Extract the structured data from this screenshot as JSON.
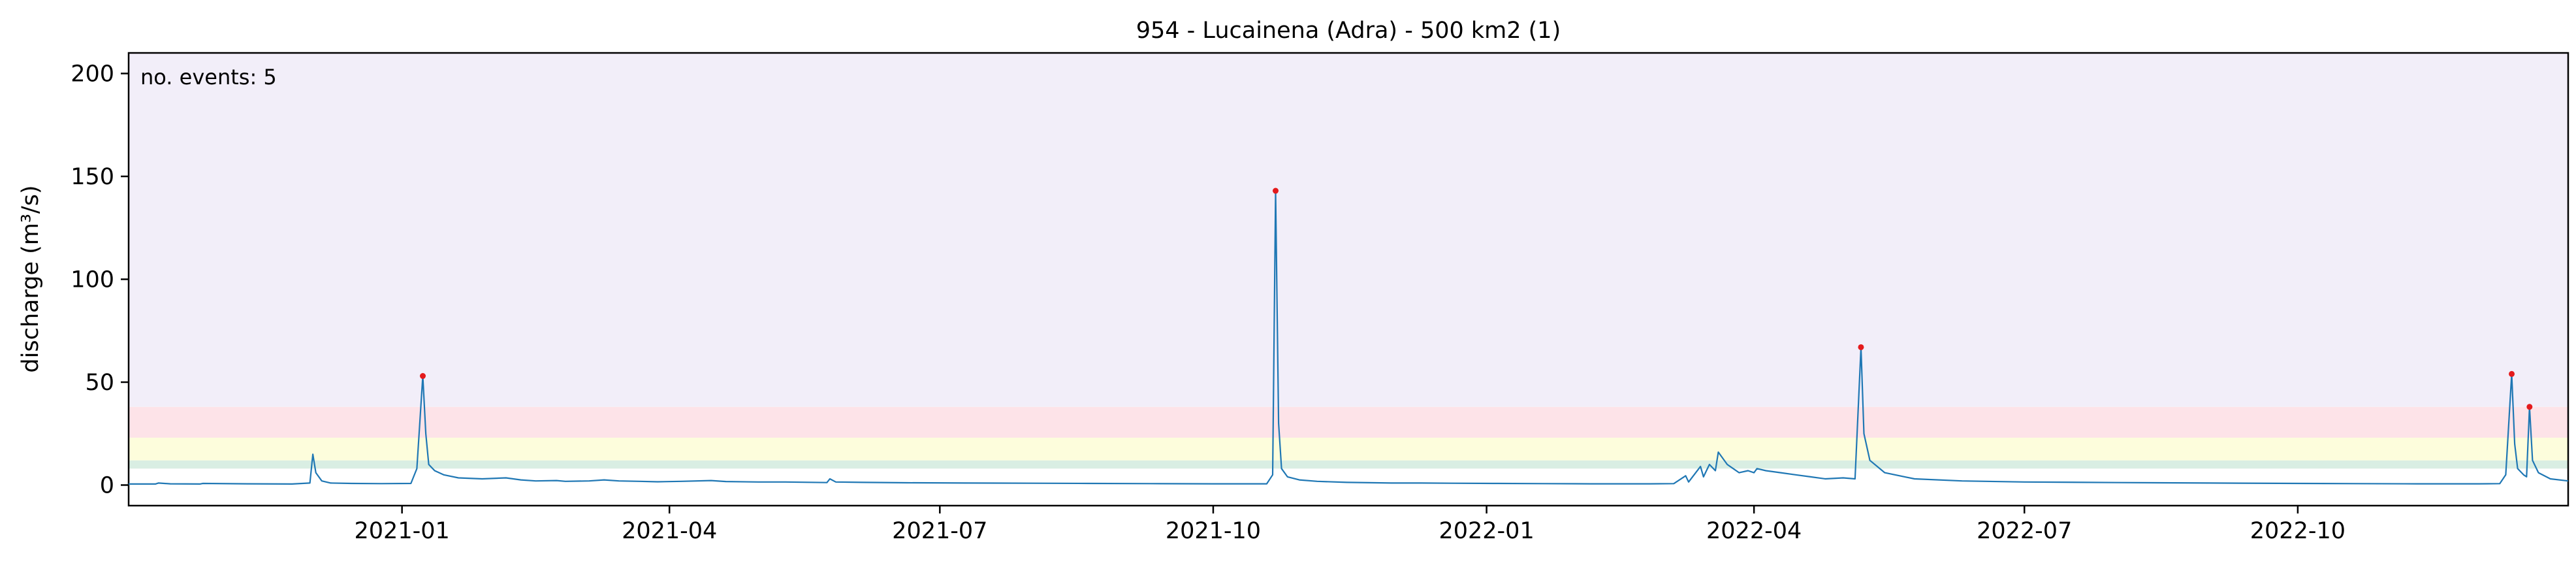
{
  "chart_data": {
    "type": "line",
    "title": "954 - Lucainena (Adra) - 500 km2 (1)",
    "xlabel": "",
    "ylabel": "discharge (m³/s)",
    "xlim": [
      "2020-10-01",
      "2022-12-31"
    ],
    "ylim": [
      -10,
      210
    ],
    "x_ticks": [
      "2021-01",
      "2021-04",
      "2021-07",
      "2021-10",
      "2022-01",
      "2022-04",
      "2022-07",
      "2022-10"
    ],
    "y_ticks": [
      0,
      50,
      100,
      150,
      200
    ],
    "grid": false,
    "colors": {
      "line": "#1f77b4",
      "event_marker": "#e41a1c",
      "annotation": "#e41a1c",
      "band_green": "#d9eee3",
      "band_yellow": "#fdfddc",
      "band_red": "#fde3e8",
      "band_purple": "#f2eef9"
    },
    "bands": [
      {
        "y0": 8,
        "y1": 12,
        "color": "band_green"
      },
      {
        "y0": 12,
        "y1": 23,
        "color": "band_yellow"
      },
      {
        "y0": 23,
        "y1": 38,
        "color": "band_red"
      },
      {
        "y0": 38,
        "y1": 210,
        "color": "band_purple"
      }
    ],
    "annotation": "no. events: 5",
    "events": [
      {
        "x": "2021-01-08",
        "y": 53
      },
      {
        "x": "2021-10-22",
        "y": 143
      },
      {
        "x": "2022-05-07",
        "y": 67
      },
      {
        "x": "2022-12-12",
        "y": 54
      },
      {
        "x": "2022-12-18",
        "y": 38
      }
    ],
    "series": [
      {
        "x": [
          "2020-10-01",
          "2020-10-10",
          "2020-10-11",
          "2020-10-15",
          "2020-10-25",
          "2020-10-26",
          "2020-11-10",
          "2020-11-25",
          "2020-12-01",
          "2020-12-02",
          "2020-12-03",
          "2020-12-05",
          "2020-12-08",
          "2020-12-15",
          "2020-12-25",
          "2021-01-04",
          "2021-01-06",
          "2021-01-08",
          "2021-01-09",
          "2021-01-10",
          "2021-01-12",
          "2021-01-15",
          "2021-01-20",
          "2021-01-28",
          "2021-02-05",
          "2021-02-10",
          "2021-02-15",
          "2021-02-22",
          "2021-02-25",
          "2021-03-05",
          "2021-03-10",
          "2021-03-15",
          "2021-03-22",
          "2021-03-28",
          "2021-04-05",
          "2021-04-15",
          "2021-04-20",
          "2021-05-01",
          "2021-05-10",
          "2021-05-24",
          "2021-05-25",
          "2021-05-27",
          "2021-06-05",
          "2021-06-20",
          "2021-07-10",
          "2021-08-01",
          "2021-08-20",
          "2021-09-10",
          "2021-10-01",
          "2021-10-19",
          "2021-10-21",
          "2021-10-22",
          "2021-10-23",
          "2021-10-24",
          "2021-10-26",
          "2021-10-30",
          "2021-11-05",
          "2021-11-15",
          "2021-11-30",
          "2021-12-10",
          "2021-12-20",
          "2022-01-05",
          "2022-01-20",
          "2022-02-05",
          "2022-02-25",
          "2022-03-05",
          "2022-03-09",
          "2022-03-10",
          "2022-03-14",
          "2022-03-15",
          "2022-03-17",
          "2022-03-19",
          "2022-03-20",
          "2022-03-23",
          "2022-03-25",
          "2022-03-27",
          "2022-03-30",
          "2022-04-01",
          "2022-04-02",
          "2022-04-05",
          "2022-04-10",
          "2022-04-15",
          "2022-04-20",
          "2022-04-25",
          "2022-05-01",
          "2022-05-05",
          "2022-05-07",
          "2022-05-08",
          "2022-05-10",
          "2022-05-15",
          "2022-05-25",
          "2022-06-10",
          "2022-07-01",
          "2022-08-01",
          "2022-09-01",
          "2022-10-01",
          "2022-10-20",
          "2022-11-10",
          "2022-12-01",
          "2022-12-08",
          "2022-12-10",
          "2022-12-12",
          "2022-12-13",
          "2022-12-14",
          "2022-12-16",
          "2022-12-17",
          "2022-12-18",
          "2022-12-19",
          "2022-12-21",
          "2022-12-25",
          "2022-12-31"
        ],
        "values": [
          0.5,
          0.5,
          1,
          0.6,
          0.5,
          0.8,
          0.6,
          0.5,
          1,
          15,
          6,
          2,
          1,
          0.8,
          0.7,
          0.8,
          8,
          53,
          25,
          10,
          7,
          5,
          3.5,
          3,
          3.5,
          2.5,
          2,
          2.2,
          1.8,
          2,
          2.5,
          2,
          1.8,
          1.6,
          1.8,
          2.2,
          1.7,
          1.5,
          1.5,
          1.2,
          3,
          1.5,
          1.3,
          1.1,
          1,
          0.9,
          0.8,
          0.7,
          0.6,
          0.6,
          5,
          143,
          30,
          8,
          4,
          2.5,
          1.8,
          1.3,
          1,
          1,
          0.9,
          0.8,
          0.7,
          0.6,
          0.6,
          0.7,
          4.5,
          1.5,
          9,
          4,
          10,
          7,
          16,
          10,
          8,
          6,
          7,
          6,
          8,
          7,
          6,
          5,
          4,
          3,
          3.5,
          3,
          67,
          25,
          12,
          6,
          3,
          2,
          1.5,
          1.2,
          1,
          0.8,
          0.7,
          0.6,
          0.6,
          0.7,
          5,
          54,
          20,
          8,
          5,
          4,
          38,
          12,
          6,
          3,
          2
        ]
      }
    ]
  }
}
